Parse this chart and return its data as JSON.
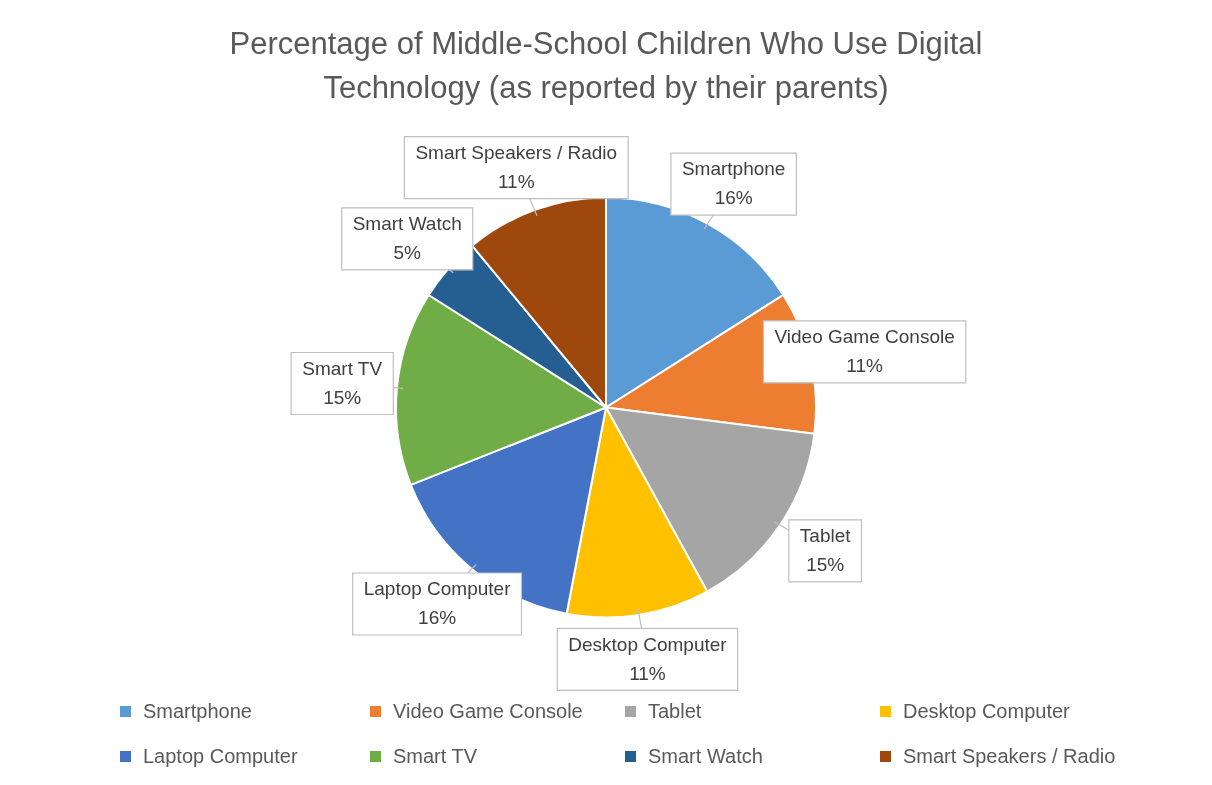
{
  "chart_data": {
    "type": "pie",
    "title": "Percentage of Middle-School Children Who Use Digital Technology (as reported by their parents)",
    "categories": [
      "Smartphone",
      "Video Game Console",
      "Tablet",
      "Desktop Computer",
      "Laptop Computer",
      "Smart TV",
      "Smart Watch",
      "Smart Speakers / Radio"
    ],
    "values": [
      16,
      11,
      15,
      11,
      16,
      15,
      5,
      11
    ],
    "value_labels": [
      "16%",
      "11%",
      "15%",
      "11%",
      "16%",
      "15%",
      "5%",
      "11%"
    ],
    "colors": [
      "#5b9bd5",
      "#ed7d31",
      "#a5a5a5",
      "#ffc000",
      "#4472c4",
      "#70ad47",
      "#255e91",
      "#9e480e"
    ],
    "legend": "bottom"
  }
}
